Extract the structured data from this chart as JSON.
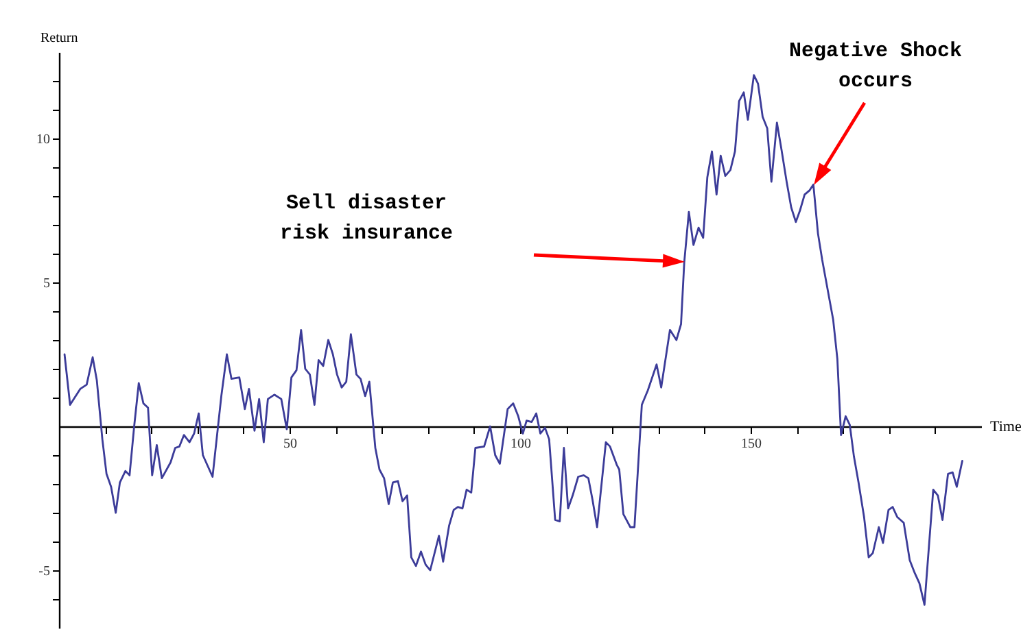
{
  "chart_data": {
    "type": "line",
    "xlabel": "Time",
    "ylabel": "Return",
    "xlim": [
      0,
      200
    ],
    "ylim": [
      -7,
      13
    ],
    "xticks": [
      {
        "value": 10,
        "label": null
      },
      {
        "value": 20,
        "label": null
      },
      {
        "value": 30,
        "label": null
      },
      {
        "value": 40,
        "label": null
      },
      50,
      {
        "value": 60,
        "label": null
      },
      {
        "value": 70,
        "label": null
      },
      {
        "value": 80,
        "label": null
      },
      {
        "value": 90,
        "label": null
      },
      100,
      {
        "value": 110,
        "label": null
      },
      {
        "value": 120,
        "label": null
      },
      {
        "value": 130,
        "label": null
      },
      {
        "value": 140,
        "label": null
      },
      150,
      {
        "value": 160,
        "label": null
      },
      {
        "value": 170,
        "label": null
      },
      {
        "value": 180,
        "label": null
      },
      {
        "value": 190,
        "label": null
      }
    ],
    "yticks": [
      {
        "value": -6,
        "label": null
      },
      -5,
      {
        "value": -4,
        "label": null
      },
      {
        "value": -3,
        "label": null
      },
      {
        "value": -2,
        "label": null
      },
      {
        "value": -1,
        "label": null
      },
      {
        "value": 1,
        "label": null
      },
      {
        "value": 2,
        "label": null
      },
      {
        "value": 3,
        "label": null
      },
      {
        "value": 4,
        "label": null
      },
      5,
      {
        "value": 6,
        "label": null
      },
      {
        "value": 7,
        "label": null
      },
      {
        "value": 8,
        "label": null
      },
      {
        "value": 9,
        "label": null
      },
      10,
      {
        "value": 11,
        "label": null
      },
      {
        "value": 12,
        "label": null
      }
    ],
    "grid": false,
    "annotations": [
      "Sell disaster\nrisk insurance",
      "Negative Shock\noccurs"
    ],
    "series": [
      {
        "color": "#3c3c99",
        "x": [
          1.2,
          2.4,
          4.6,
          6,
          7.3,
          8.2,
          9.4,
          10.3,
          11.3,
          12.3,
          13.2,
          14.4,
          15.3,
          16.3,
          17.3,
          18.3,
          19.3,
          20.2,
          21.2,
          22.3,
          24.2,
          25.2,
          26.1,
          27.1,
          28.3,
          29.3,
          30.3,
          31.2,
          33.3,
          35.2,
          36.4,
          37.4,
          39.1,
          40.3,
          41.2,
          42.4,
          43.4,
          44.4,
          45.3,
          46.7,
          48.2,
          49.4,
          50.4,
          51.5,
          52.5,
          53.4,
          54.4,
          55.4,
          56.3,
          57.3,
          58.4,
          59.4,
          60.3,
          61.3,
          62.3,
          63.3,
          64.5,
          65.4,
          66.4,
          67.3,
          68.6,
          69.5,
          70.5,
          71.5,
          72.4,
          73.5,
          74.5,
          75.5,
          76.4,
          77.4,
          78.5,
          79.5,
          80.5,
          82.4,
          83.3,
          84.6,
          85.6,
          86.5,
          87.5,
          88.4,
          89.4,
          90.3,
          92.2,
          93.5,
          94.6,
          95.6,
          97.3,
          98.5,
          99.6,
          100.6,
          101.4,
          102.5,
          103.5,
          104.4,
          105.4,
          106.3,
          107.6,
          108.6,
          109.5,
          110.4,
          111.4,
          112.6,
          113.8,
          114.8,
          115.7,
          116.7,
          118.6,
          119.5,
          121,
          121.5,
          122.4,
          123.9,
          124.8,
          126.4,
          127.7,
          129.6,
          130.6,
          132.5,
          133.9,
          134.9,
          135.6,
          136.6,
          137.6,
          138.7,
          139.7,
          140.6,
          141.6,
          142.6,
          143.5,
          144.5,
          145.6,
          146.6,
          147.5,
          148.5,
          149.4,
          150.7,
          151.6,
          152.6,
          153.6,
          154.5,
          155.7,
          156.7,
          157.8,
          158.8,
          159.8,
          160.7,
          161.7,
          162.8,
          163.6,
          164.6,
          165.5,
          166.7,
          167.9,
          168.8,
          169.6,
          170.6,
          171.5,
          172.4,
          173.4,
          174.6,
          175.6,
          176.5,
          177.8,
          178.7,
          179.9,
          180.8,
          181.8,
          183.2,
          184.5,
          185.6,
          186.6,
          187.7,
          189.6,
          190.6,
          191.6,
          192.8,
          193.8,
          194.7,
          195.9
        ],
        "values": [
          2.5,
          0.75,
          1.3,
          1.45,
          2.4,
          1.6,
          -0.45,
          -1.65,
          -2.1,
          -3,
          -1.95,
          -1.55,
          -1.7,
          0,
          1.5,
          0.8,
          0.65,
          -1.7,
          -0.65,
          -1.8,
          -1.25,
          -0.75,
          -0.7,
          -0.3,
          -0.55,
          -0.25,
          0.45,
          -1,
          -1.75,
          1.05,
          2.5,
          1.65,
          1.7,
          0.6,
          1.3,
          -0.15,
          0.95,
          -0.55,
          0.95,
          1.1,
          0.95,
          -0.1,
          1.7,
          1.95,
          3.35,
          2,
          1.8,
          0.75,
          2.3,
          2.1,
          3,
          2.5,
          1.8,
          1.35,
          1.55,
          3.2,
          1.8,
          1.65,
          1.05,
          1.55,
          -0.75,
          -1.5,
          -1.8,
          -2.7,
          -1.95,
          -1.9,
          -2.6,
          -2.4,
          -4.55,
          -4.85,
          -4.35,
          -4.8,
          -5,
          -3.8,
          -4.7,
          -3.45,
          -2.9,
          -2.8,
          -2.85,
          -2.2,
          -2.3,
          -0.75,
          -0.7,
          0,
          -1,
          -1.3,
          0.6,
          0.8,
          0.35,
          -0.25,
          0.2,
          0.15,
          0.45,
          -0.25,
          -0.05,
          -0.45,
          -3.25,
          -3.3,
          -0.75,
          -2.85,
          -2.4,
          -1.75,
          -1.7,
          -1.8,
          -2.55,
          -3.5,
          -0.55,
          -0.7,
          -1.35,
          -1.5,
          -3.05,
          -3.5,
          -3.5,
          0.75,
          1.25,
          2.15,
          1.35,
          3.35,
          3,
          3.55,
          5.7,
          7.45,
          6.3,
          6.9,
          6.55,
          8.65,
          9.55,
          8.05,
          9.4,
          8.7,
          8.9,
          9.55,
          11.3,
          11.6,
          10.65,
          12.2,
          11.9,
          10.75,
          10.35,
          8.5,
          10.55,
          9.6,
          8.5,
          7.6,
          7.1,
          7.5,
          8.05,
          8.2,
          8.4,
          6.7,
          5.8,
          4.75,
          3.7,
          2.35,
          -0.3,
          0.35,
          0.05,
          -1.05,
          -1.95,
          -3.15,
          -4.55,
          -4.4,
          -3.5,
          -4.05,
          -2.9,
          -2.8,
          -3.15,
          -3.35,
          -4.65,
          -5.1,
          -5.45,
          -6.2,
          -2.2,
          -2.4,
          -3.25,
          -1.65,
          -1.6,
          -2.1,
          -1.2
        ]
      }
    ]
  }
}
